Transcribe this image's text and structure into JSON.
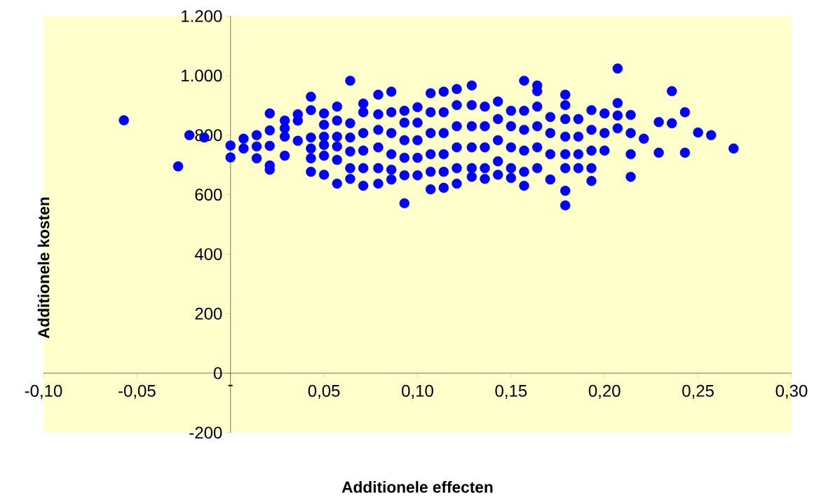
{
  "chart_data": {
    "type": "scatter",
    "xlabel": "Additionele effecten",
    "ylabel": "Additionele kosten",
    "color": "#0000ff",
    "marker": "circle",
    "xlim": [
      -0.1,
      0.3
    ],
    "ylim": [
      -200,
      1200
    ],
    "xticks": [
      {
        "value": -0.1,
        "label": "-0,10"
      },
      {
        "value": -0.05,
        "label": "-0,05"
      },
      {
        "value": 0,
        "label": "-"
      },
      {
        "value": 0.05,
        "label": "0,05"
      },
      {
        "value": 0.1,
        "label": "0,10"
      },
      {
        "value": 0.15,
        "label": "0,15"
      },
      {
        "value": 0.2,
        "label": "0,20"
      },
      {
        "value": 0.25,
        "label": "0,25"
      },
      {
        "value": 0.3,
        "label": "0,30"
      }
    ],
    "yticks": [
      -200,
      0,
      200,
      400,
      600,
      800,
      {
        "value": 1000,
        "label": "1.000"
      },
      {
        "value": 1200,
        "label": "1.200"
      }
    ],
    "x": [
      -0.057,
      -0.028,
      -0.022,
      -0.014,
      0,
      0,
      0.007,
      0.007,
      0.014,
      0.014,
      0.014,
      0.021,
      0.021,
      0.021,
      0.021,
      0.021,
      0.029,
      0.029,
      0.029,
      0.029,
      0.036,
      0.036,
      0.036,
      0.043,
      0.043,
      0.043,
      0.043,
      0.043,
      0.043,
      0.05,
      0.05,
      0.05,
      0.05,
      0.05,
      0.05,
      0.057,
      0.057,
      0.057,
      0.057,
      0.057,
      0.057,
      0.064,
      0.064,
      0.064,
      0.064,
      0.064,
      0.064,
      0.071,
      0.071,
      0.071,
      0.071,
      0.071,
      0.071,
      0.079,
      0.079,
      0.079,
      0.079,
      0.079,
      0.079,
      0.086,
      0.086,
      0.086,
      0.086,
      0.086,
      0.086,
      0.093,
      0.093,
      0.093,
      0.093,
      0.093,
      0.093,
      0.1,
      0.1,
      0.1,
      0.1,
      0.1,
      0.107,
      0.107,
      0.107,
      0.107,
      0.107,
      0.107,
      0.114,
      0.114,
      0.114,
      0.114,
      0.114,
      0.114,
      0.121,
      0.121,
      0.121,
      0.121,
      0.121,
      0.121,
      0.129,
      0.129,
      0.129,
      0.129,
      0.129,
      0.129,
      0.136,
      0.136,
      0.136,
      0.136,
      0.136,
      0.143,
      0.143,
      0.143,
      0.143,
      0.143,
      0.15,
      0.15,
      0.15,
      0.15,
      0.15,
      0.157,
      0.157,
      0.157,
      0.157,
      0.157,
      0.157,
      0.164,
      0.164,
      0.164,
      0.164,
      0.164,
      0.164,
      0.171,
      0.171,
      0.171,
      0.171,
      0.179,
      0.179,
      0.179,
      0.179,
      0.179,
      0.179,
      0.179,
      0.179,
      0.186,
      0.186,
      0.186,
      0.186,
      0.193,
      0.193,
      0.193,
      0.193,
      0.193,
      0.2,
      0.2,
      0.2,
      0.207,
      0.207,
      0.207,
      0.207,
      0.214,
      0.214,
      0.214,
      0.214,
      0.221,
      0.229,
      0.229,
      0.236,
      0.236,
      0.243,
      0.243,
      0.25,
      0.257,
      0.269
    ],
    "values": [
      850,
      695,
      800,
      792,
      765,
      725,
      788,
      755,
      800,
      762,
      722,
      873,
      816,
      764,
      698,
      684,
      849,
      823,
      795,
      731,
      870,
      849,
      781,
      929,
      884,
      792,
      755,
      722,
      677,
      873,
      835,
      795,
      767,
      731,
      667,
      896,
      849,
      795,
      762,
      717,
      637,
      983,
      840,
      792,
      745,
      689,
      653,
      906,
      877,
      807,
      748,
      689,
      630,
      936,
      870,
      818,
      759,
      689,
      637,
      946,
      877,
      807,
      736,
      684,
      651,
      882,
      842,
      783,
      724,
      665,
      571,
      894,
      842,
      783,
      724,
      665,
      941,
      877,
      807,
      736,
      677,
      618,
      946,
      877,
      807,
      736,
      677,
      623,
      955,
      901,
      830,
      759,
      689,
      637,
      967,
      901,
      830,
      759,
      689,
      660,
      896,
      830,
      759,
      689,
      653,
      913,
      854,
      783,
      712,
      667,
      882,
      830,
      759,
      689,
      656,
      983,
      882,
      818,
      748,
      677,
      630,
      967,
      948,
      896,
      830,
      759,
      689,
      861,
      807,
      736,
      651,
      936,
      901,
      854,
      795,
      736,
      689,
      613,
      564,
      854,
      795,
      736,
      689,
      884,
      818,
      748,
      689,
      646,
      873,
      807,
      748,
      1024,
      908,
      866,
      823,
      868,
      807,
      736,
      660,
      788,
      844,
      741,
      948,
      840,
      877,
      741,
      809,
      800,
      755
    ]
  }
}
